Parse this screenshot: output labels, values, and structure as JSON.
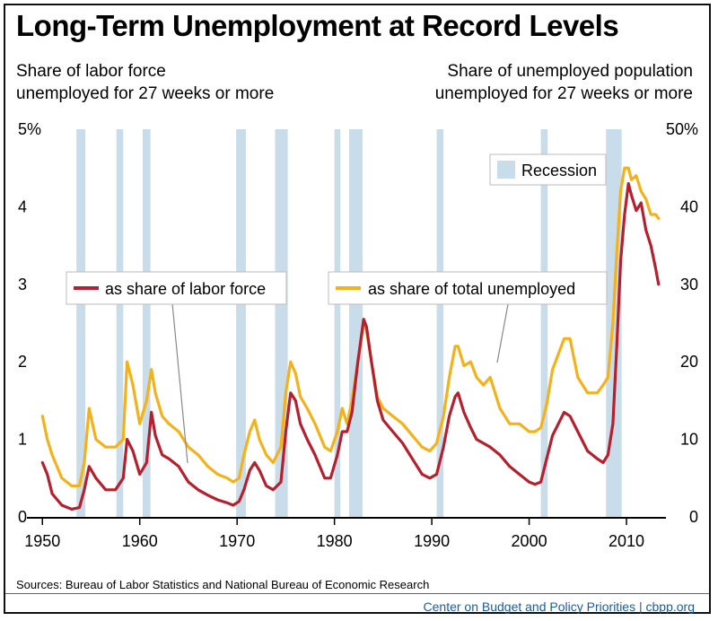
{
  "title": "Long-Term Unemployment at Record Levels",
  "left_axis_title": [
    "Share of labor force",
    "unemployed for 27 weeks or more"
  ],
  "right_axis_title": [
    "Share of unemployed population",
    "unemployed for 27 weeks or more"
  ],
  "sources": "Sources: Bureau of Labor Statistics and National Bureau of Economic Research",
  "credit": "Center on Budget and Policy Priorities | cbpp.org",
  "colors": {
    "labor_force": "#b5202e",
    "total_unemployed": "#f3b21b",
    "recession": "#c9dcea"
  },
  "chart_data": {
    "type": "line",
    "x_range": [
      1949.7,
      2013.5
    ],
    "x_ticks": [
      "1950",
      "1960",
      "1970",
      "1980",
      "1990",
      "2000",
      "2010"
    ],
    "left_axis": {
      "range": [
        0,
        5
      ],
      "ticks": [
        "0",
        "1",
        "2",
        "3",
        "4",
        "5%"
      ]
    },
    "right_axis": {
      "range": [
        0,
        50
      ],
      "ticks": [
        "0",
        "10",
        "20",
        "30",
        "40",
        "50%"
      ]
    },
    "recessions": [
      [
        1953.5,
        1954.4
      ],
      [
        1957.6,
        1958.3
      ],
      [
        1960.3,
        1961.1
      ],
      [
        1969.9,
        1970.9
      ],
      [
        1973.9,
        1975.2
      ],
      [
        1980.0,
        1980.6
      ],
      [
        1981.5,
        1982.9
      ],
      [
        1990.5,
        1991.2
      ],
      [
        2001.2,
        2001.9
      ],
      [
        2007.9,
        2009.5
      ]
    ],
    "legend_recession": "Recession",
    "series": [
      {
        "name": "as share of labor force",
        "axis": "left",
        "x": [
          1950.0,
          1950.5,
          1951.0,
          1952.0,
          1953.0,
          1953.8,
          1954.3,
          1954.8,
          1955.5,
          1956.5,
          1957.5,
          1958.3,
          1958.7,
          1959.3,
          1960.0,
          1960.7,
          1961.2,
          1961.6,
          1962.3,
          1963.0,
          1964.0,
          1965.0,
          1966.0,
          1967.0,
          1968.0,
          1969.0,
          1969.6,
          1970.2,
          1970.7,
          1971.3,
          1971.8,
          1972.3,
          1973.0,
          1973.7,
          1974.5,
          1975.0,
          1975.5,
          1976.0,
          1976.5,
          1977.2,
          1978.0,
          1979.0,
          1979.6,
          1980.3,
          1980.8,
          1981.3,
          1981.8,
          1982.4,
          1983.0,
          1983.3,
          1983.8,
          1984.4,
          1985.0,
          1986.0,
          1987.0,
          1988.0,
          1989.0,
          1989.8,
          1990.5,
          1991.2,
          1991.8,
          1992.4,
          1992.7,
          1993.3,
          1994.0,
          1994.6,
          1995.3,
          1996.0,
          1997.0,
          1998.0,
          1999.0,
          2000.0,
          2000.6,
          2001.2,
          2001.8,
          2002.4,
          2003.0,
          2003.6,
          2004.2,
          2005.0,
          2006.0,
          2007.0,
          2007.6,
          2008.1,
          2008.6,
          2009.0,
          2009.4,
          2009.8,
          2010.2,
          2010.5,
          2011.0,
          2011.5,
          2012.0,
          2012.5,
          2013.0,
          2013.3
        ],
        "y": [
          0.7,
          0.55,
          0.3,
          0.15,
          0.1,
          0.12,
          0.35,
          0.65,
          0.5,
          0.35,
          0.35,
          0.5,
          1.0,
          0.85,
          0.55,
          0.7,
          1.35,
          1.05,
          0.8,
          0.75,
          0.65,
          0.45,
          0.35,
          0.28,
          0.22,
          0.18,
          0.15,
          0.2,
          0.35,
          0.6,
          0.7,
          0.6,
          0.4,
          0.35,
          0.45,
          1.1,
          1.6,
          1.5,
          1.2,
          1.0,
          0.8,
          0.5,
          0.5,
          0.8,
          1.1,
          1.1,
          1.35,
          2.0,
          2.55,
          2.45,
          2.0,
          1.5,
          1.25,
          1.1,
          0.95,
          0.75,
          0.55,
          0.5,
          0.55,
          0.9,
          1.3,
          1.55,
          1.6,
          1.35,
          1.15,
          1.0,
          0.95,
          0.9,
          0.8,
          0.65,
          0.55,
          0.45,
          0.42,
          0.45,
          0.75,
          1.05,
          1.2,
          1.35,
          1.3,
          1.1,
          0.85,
          0.75,
          0.7,
          0.8,
          1.2,
          2.2,
          3.3,
          3.9,
          4.3,
          4.15,
          3.95,
          4.05,
          3.7,
          3.5,
          3.2,
          3.0
        ]
      },
      {
        "name": "as share of total unemployed",
        "axis": "right",
        "x": [
          1950.0,
          1950.5,
          1951.0,
          1952.0,
          1953.0,
          1953.8,
          1954.3,
          1954.8,
          1955.5,
          1956.5,
          1957.5,
          1958.3,
          1958.7,
          1959.3,
          1960.0,
          1960.7,
          1961.2,
          1961.6,
          1962.3,
          1963.0,
          1964.0,
          1965.0,
          1966.0,
          1967.0,
          1968.0,
          1969.0,
          1969.6,
          1970.2,
          1970.7,
          1971.3,
          1971.8,
          1972.3,
          1973.0,
          1973.7,
          1974.5,
          1975.0,
          1975.5,
          1976.0,
          1976.5,
          1977.2,
          1978.0,
          1979.0,
          1979.6,
          1980.3,
          1980.8,
          1981.3,
          1981.8,
          1982.4,
          1983.0,
          1983.3,
          1983.8,
          1984.4,
          1985.0,
          1986.0,
          1987.0,
          1988.0,
          1989.0,
          1989.8,
          1990.5,
          1991.2,
          1991.8,
          1992.4,
          1992.7,
          1993.3,
          1994.0,
          1994.6,
          1995.3,
          1996.0,
          1997.0,
          1998.0,
          1999.0,
          2000.0,
          2000.6,
          2001.2,
          2001.8,
          2002.4,
          2003.0,
          2003.6,
          2004.2,
          2005.0,
          2006.0,
          2007.0,
          2007.6,
          2008.1,
          2008.6,
          2009.0,
          2009.4,
          2009.8,
          2010.2,
          2010.5,
          2011.0,
          2011.5,
          2012.0,
          2012.5,
          2013.0,
          2013.3
        ],
        "y": [
          13,
          10,
          8,
          5,
          4,
          4,
          7,
          14,
          10,
          9,
          9,
          10,
          20,
          17,
          12,
          15,
          19,
          16,
          13,
          12,
          11,
          9,
          8,
          6.5,
          5.5,
          5,
          4.5,
          5,
          8,
          11,
          12.5,
          10,
          8,
          7,
          9,
          16,
          20,
          18.5,
          15.5,
          14,
          12,
          9,
          8.5,
          11,
          14,
          12,
          15,
          20,
          25,
          24,
          20,
          15.5,
          14,
          13,
          12,
          10.5,
          9,
          8.5,
          9.5,
          13,
          18,
          22,
          22,
          19.5,
          20,
          18,
          17,
          18,
          14,
          12,
          12,
          11,
          11,
          11.5,
          14.5,
          19,
          21,
          23,
          23,
          18,
          16,
          16,
          17,
          18,
          25,
          34,
          42,
          45,
          45,
          43.5,
          44,
          42,
          41,
          39,
          39,
          38.5
        ]
      }
    ],
    "annotations": [
      "as share of labor force",
      "as share of total unemployed"
    ]
  }
}
